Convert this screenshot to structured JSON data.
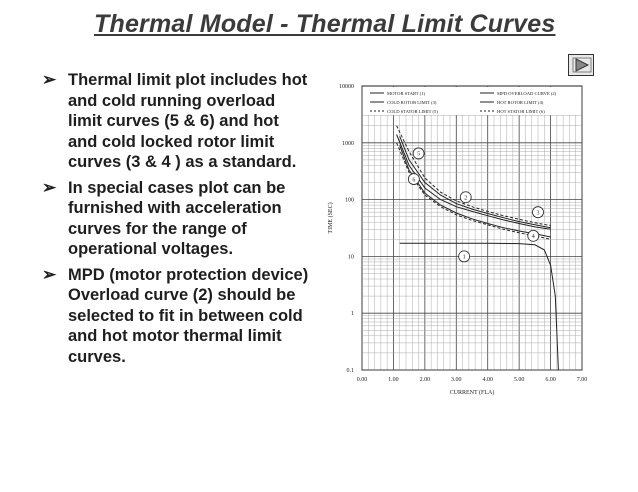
{
  "slide": {
    "title": "Thermal Model - Thermal Limit Curves",
    "nav_icon": "next-slide-icon",
    "bullet_glyph": "➢",
    "bullets": [
      "Thermal limit plot includes hot and cold running overload limit curves (5 & 6) and hot and cold locked rotor limit curves (3 & 4 ) as a standard.",
      "In special cases plot can be furnished with acceleration curves for the range of operational voltages.",
      "MPD (motor protection device) Overload curve (2) should be selected to fit in between cold and hot motor thermal limit curves."
    ]
  },
  "chart_data": {
    "type": "line",
    "xlabel": "CURRENT (FLA)",
    "ylabel": "TIME (SEC)",
    "xlim": [
      0,
      7
    ],
    "ylim": [
      0.1,
      10000
    ],
    "yscale": "log",
    "x_ticks": [
      "0.00",
      "1.00",
      "2.00",
      "3.00",
      "4.00",
      "5.00",
      "6.00",
      "7.00"
    ],
    "y_ticks": [
      "10000",
      "1000",
      "100",
      "10",
      "1",
      "0.1"
    ],
    "grid": true,
    "legend_position": "top",
    "series": [
      {
        "name": "MOTOR START (1)",
        "label": "1",
        "style": "solid",
        "points": [
          [
            1.2,
            17
          ],
          [
            2,
            17
          ],
          [
            3,
            17
          ],
          [
            4,
            17
          ],
          [
            5,
            16.8
          ],
          [
            5.5,
            16
          ],
          [
            5.8,
            13
          ],
          [
            6.0,
            7
          ],
          [
            6.15,
            2
          ],
          [
            6.25,
            0.1
          ]
        ]
      },
      {
        "name": "MPD OVERLOAD CURVE (2)",
        "label": "2",
        "style": "solid",
        "points": [
          [
            1.1,
            1400
          ],
          [
            1.5,
            400
          ],
          [
            2,
            160
          ],
          [
            2.5,
            100
          ],
          [
            3,
            75
          ],
          [
            3.5,
            62
          ],
          [
            4,
            52
          ],
          [
            4.5,
            44
          ],
          [
            5,
            38
          ],
          [
            5.5,
            33
          ],
          [
            6,
            30
          ]
        ]
      },
      {
        "name": "COLD ROTOR LIMIT (3)",
        "label": "3",
        "style": "solid",
        "points": [
          [
            1.2,
            1300
          ],
          [
            1.5,
            500
          ],
          [
            2,
            200
          ],
          [
            2.5,
            120
          ],
          [
            3,
            85
          ],
          [
            3.5,
            68
          ],
          [
            4,
            57
          ],
          [
            4.5,
            48
          ],
          [
            5,
            41
          ],
          [
            5.5,
            36
          ],
          [
            6,
            32
          ]
        ]
      },
      {
        "name": "HOT ROTOR LIMIT (4)",
        "label": "4",
        "style": "solid",
        "points": [
          [
            1.2,
            900
          ],
          [
            1.5,
            330
          ],
          [
            2,
            130
          ],
          [
            2.5,
            80
          ],
          [
            3,
            58
          ],
          [
            3.5,
            46
          ],
          [
            4,
            38
          ],
          [
            4.5,
            32
          ],
          [
            5,
            28
          ],
          [
            5.5,
            25
          ],
          [
            6,
            22
          ]
        ]
      },
      {
        "name": "COLD STATOR LIMIT (5)",
        "label": "5",
        "style": "dashed",
        "points": [
          [
            1.1,
            2000
          ],
          [
            1.5,
            700
          ],
          [
            2,
            240
          ],
          [
            2.5,
            135
          ],
          [
            3,
            95
          ],
          [
            3.5,
            75
          ],
          [
            4,
            62
          ],
          [
            4.5,
            52
          ],
          [
            5,
            45
          ],
          [
            5.5,
            39
          ],
          [
            6,
            35
          ]
        ]
      },
      {
        "name": "HOT STATOR LIMIT (6)",
        "label": "6",
        "style": "dashed",
        "points": [
          [
            1.1,
            1000
          ],
          [
            1.5,
            300
          ],
          [
            2,
            120
          ],
          [
            2.5,
            75
          ],
          [
            3,
            54
          ],
          [
            3.5,
            43
          ],
          [
            4,
            36
          ],
          [
            4.5,
            30
          ],
          [
            5,
            26
          ],
          [
            5.5,
            23
          ],
          [
            6,
            20
          ]
        ]
      }
    ],
    "markers": [
      {
        "label": "5",
        "x": 1.8,
        "y": 650
      },
      {
        "label": "6",
        "x": 1.65,
        "y": 230
      },
      {
        "label": "2",
        "x": 3.3,
        "y": 110
      },
      {
        "label": "3",
        "x": 5.6,
        "y": 60
      },
      {
        "label": "4",
        "x": 5.45,
        "y": 23
      },
      {
        "label": "1",
        "x": 3.25,
        "y": 10
      }
    ]
  }
}
